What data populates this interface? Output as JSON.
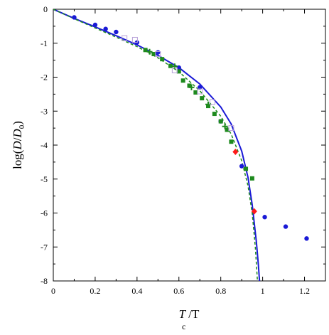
{
  "chart_data": {
    "type": "scatter",
    "xlim": [
      0,
      1.3
    ],
    "ylim": [
      -8,
      0
    ],
    "xticks": [
      "0",
      "0.2",
      "0.4",
      "0.6",
      "0.8",
      "1",
      "1.2"
    ],
    "yticks": [
      "0",
      "-1",
      "-2",
      "-3",
      "-4",
      "-5",
      "-6",
      "-7",
      "-8"
    ],
    "xlabel": {
      "main": "T",
      "slash": " /T",
      "sub": "c"
    },
    "ylabel": {
      "pre": "log(",
      "D1": "D",
      "slash": "/",
      "D2": "D",
      "sub": "0",
      "post": ")"
    },
    "grid": false,
    "series": [
      {
        "marker": "circle",
        "color": "#1a1ad6",
        "points": [
          [
            0.1,
            -0.24
          ],
          [
            0.2,
            -0.46
          ],
          [
            0.25,
            -0.58
          ],
          [
            0.3,
            -0.67
          ],
          [
            0.4,
            -0.98
          ],
          [
            0.5,
            -1.27
          ],
          [
            0.6,
            -1.72
          ],
          [
            0.7,
            -2.3
          ],
          [
            0.8,
            -3.3
          ],
          [
            0.9,
            -4.62
          ],
          [
            1.01,
            -6.12
          ],
          [
            1.11,
            -6.4
          ],
          [
            1.21,
            -6.75
          ]
        ]
      },
      {
        "marker": "square",
        "color": "#1e8a1e",
        "points": [
          [
            0.44,
            -1.2
          ],
          [
            0.48,
            -1.32
          ],
          [
            0.52,
            -1.47
          ],
          [
            0.56,
            -1.67
          ],
          [
            0.6,
            -1.83
          ],
          [
            0.62,
            -2.1
          ],
          [
            0.65,
            -2.25
          ],
          [
            0.68,
            -2.45
          ],
          [
            0.71,
            -2.62
          ],
          [
            0.74,
            -2.85
          ],
          [
            0.77,
            -3.08
          ],
          [
            0.8,
            -3.3
          ],
          [
            0.83,
            -3.55
          ],
          [
            0.85,
            -3.9
          ],
          [
            0.92,
            -4.7
          ],
          [
            0.95,
            -4.98
          ]
        ]
      },
      {
        "marker": "plus",
        "color": "#1e8a1e",
        "points": [
          [
            0.46,
            -1.25
          ],
          [
            0.58,
            -1.68
          ],
          [
            0.66,
            -2.3
          ],
          [
            0.74,
            -2.8
          ],
          [
            0.82,
            -3.45
          ]
        ]
      },
      {
        "marker": "open-square",
        "color": "#b7a0d9",
        "points": [
          [
            0.34,
            -0.85
          ],
          [
            0.39,
            -0.9
          ],
          [
            0.5,
            -1.32
          ],
          [
            0.58,
            -1.8
          ],
          [
            0.7,
            -2.42
          ],
          [
            0.76,
            -2.73
          ],
          [
            0.85,
            -3.5
          ]
        ]
      },
      {
        "marker": "diamond",
        "color": "#ff1a1a",
        "points": [
          [
            0.87,
            -4.2
          ],
          [
            0.96,
            -5.95
          ]
        ]
      }
    ],
    "curves": [
      {
        "style": "solid",
        "color": "#1a1ad6",
        "points": [
          [
            0,
            0
          ],
          [
            0.1,
            -0.27
          ],
          [
            0.2,
            -0.52
          ],
          [
            0.3,
            -0.78
          ],
          [
            0.4,
            -1.05
          ],
          [
            0.5,
            -1.36
          ],
          [
            0.6,
            -1.72
          ],
          [
            0.7,
            -2.2
          ],
          [
            0.8,
            -2.88
          ],
          [
            0.85,
            -3.38
          ],
          [
            0.9,
            -4.18
          ],
          [
            0.93,
            -4.95
          ],
          [
            0.95,
            -5.75
          ],
          [
            0.97,
            -6.85
          ],
          [
            0.98,
            -7.55
          ],
          [
            0.985,
            -8.0
          ]
        ]
      },
      {
        "style": "dashed",
        "color": "#1e8a1e",
        "points": [
          [
            0,
            0
          ],
          [
            0.1,
            -0.28
          ],
          [
            0.2,
            -0.55
          ],
          [
            0.3,
            -0.82
          ],
          [
            0.4,
            -1.1
          ],
          [
            0.5,
            -1.43
          ],
          [
            0.6,
            -1.84
          ],
          [
            0.7,
            -2.4
          ],
          [
            0.8,
            -3.15
          ],
          [
            0.85,
            -3.68
          ],
          [
            0.9,
            -4.46
          ],
          [
            0.93,
            -5.2
          ],
          [
            0.95,
            -6.0
          ],
          [
            0.965,
            -7.0
          ],
          [
            0.975,
            -8.0
          ]
        ]
      }
    ]
  }
}
